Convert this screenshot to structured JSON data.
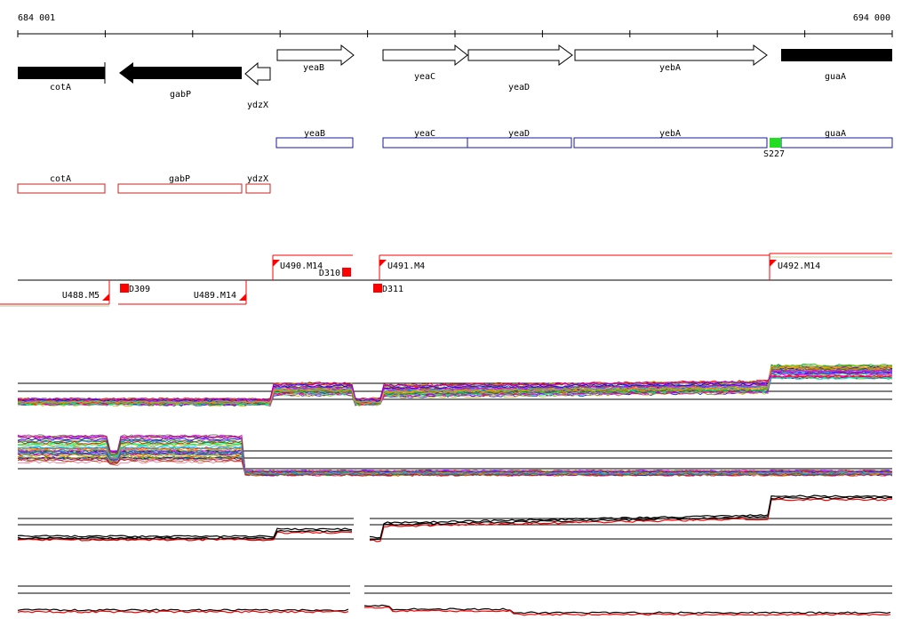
{
  "coordinates": {
    "start": "684 001",
    "end": "694 000"
  },
  "genes": [
    {
      "name": "cotA",
      "strand": "-",
      "style": "filled"
    },
    {
      "name": "gabP",
      "strand": "-",
      "style": "filled"
    },
    {
      "name": "ydzX",
      "strand": "-",
      "style": "outline"
    },
    {
      "name": "yeaB",
      "strand": "+",
      "style": "outline"
    },
    {
      "name": "yeaC",
      "strand": "+",
      "style": "outline"
    },
    {
      "name": "yeaD",
      "strand": "+",
      "style": "outline"
    },
    {
      "name": "yebA",
      "strand": "+",
      "style": "outline"
    },
    {
      "name": "guaA",
      "strand": "+",
      "style": "filled"
    }
  ],
  "forward_features": [
    "yeaB",
    "yeaC",
    "yeaD",
    "yebA",
    "guaA"
  ],
  "reverse_features": [
    "cotA",
    "gabP",
    "ydzX"
  ],
  "sites": [
    {
      "label": "S227",
      "color": "#22dd22"
    }
  ],
  "transcripts_upper": [
    {
      "label": "U490.M14"
    },
    {
      "label": "U491.M4"
    },
    {
      "label": "U492.M14"
    }
  ],
  "transcripts_lower": [
    {
      "label": "U488.M5"
    },
    {
      "label": "U489.M14"
    }
  ],
  "downshifts": [
    {
      "label": "D309"
    },
    {
      "label": "D310"
    },
    {
      "label": "D311"
    }
  ],
  "colors": {
    "forward_box": "#1a1aa0",
    "reverse_box": "#cc2222",
    "marker_red": "#ff0000",
    "site_green": "#22dd22",
    "axis": "#000000"
  }
}
